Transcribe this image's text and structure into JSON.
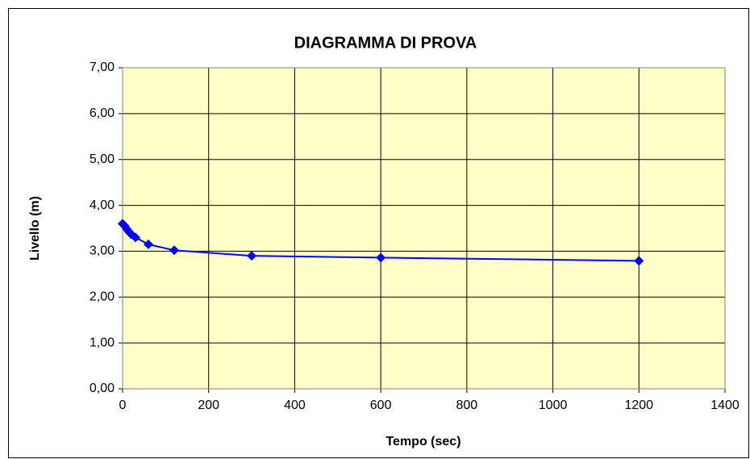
{
  "chart_data": {
    "type": "line",
    "title": "DIAGRAMMA DI PROVA",
    "x_label": "Tempo (sec)",
    "y_label": "Livello (m)",
    "x": [
      0,
      5,
      10,
      15,
      20,
      30,
      60,
      120,
      300,
      600,
      1200
    ],
    "series": [
      {
        "name": "Livello",
        "color": "#0000ff",
        "values": [
          3.6,
          3.55,
          3.48,
          3.42,
          3.37,
          3.3,
          3.15,
          3.02,
          2.9,
          2.86,
          2.79
        ]
      }
    ],
    "xlim": [
      0,
      1400
    ],
    "xticks": [
      0,
      200,
      400,
      600,
      800,
      1000,
      1200,
      1400
    ],
    "ylim": [
      0,
      7
    ],
    "yticks": [
      {
        "value": 0,
        "label": "0,00"
      },
      {
        "value": 1,
        "label": "1,00"
      },
      {
        "value": 2,
        "label": "2,00"
      },
      {
        "value": 3,
        "label": "3,00"
      },
      {
        "value": 4,
        "label": "4,00"
      },
      {
        "value": 5,
        "label": "5,00"
      },
      {
        "value": 6,
        "label": "6,00"
      },
      {
        "value": 7,
        "label": "7,00"
      }
    ],
    "grid": true,
    "plot_background": "#ffffc8"
  }
}
